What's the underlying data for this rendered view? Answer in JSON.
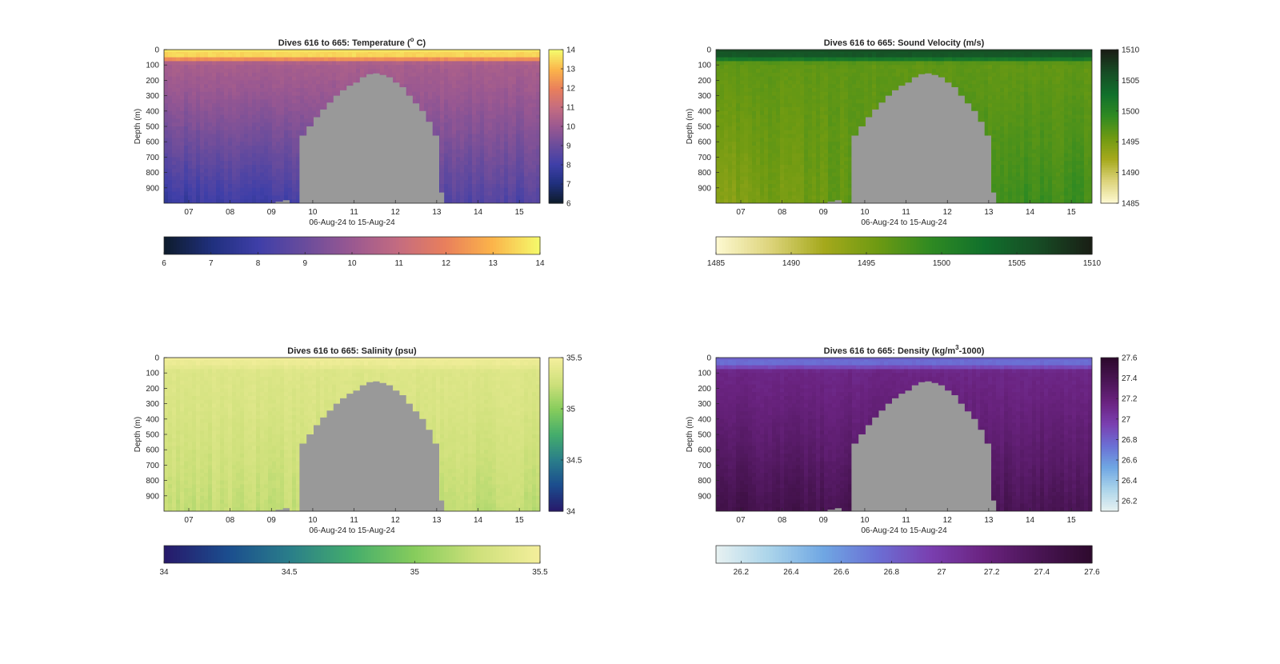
{
  "figure": {
    "colors": {
      "background": "#ffffff",
      "axis": "#262626",
      "bathymetry_mask": "#999999"
    }
  },
  "chart_data": [
    {
      "type": "heatmap",
      "id": "temperature",
      "title": "Dives 616 to 665: Temperature (°C)",
      "title_main": "Dives 616 to 665: Temperature (",
      "title_sup": "o",
      "title_end": " C)",
      "xlabel": "06-Aug-24 to 15-Aug-24",
      "ylabel": "Depth (m)",
      "x_ticks": [
        "07",
        "08",
        "09",
        "10",
        "11",
        "12",
        "13",
        "14",
        "15"
      ],
      "xlim_days": [
        6.4,
        15.5
      ],
      "y_ticks": [
        0,
        100,
        200,
        300,
        400,
        500,
        600,
        700,
        800,
        900
      ],
      "ylim": [
        0,
        1000
      ],
      "y_reversed": true,
      "colorbar_right": {
        "range": [
          6,
          14
        ],
        "ticks": [
          "6",
          "7",
          "8",
          "9",
          "10",
          "11",
          "12",
          "13",
          "14"
        ]
      },
      "colorbar_bottom": {
        "range": [
          6,
          14
        ],
        "ticks": [
          "6",
          "7",
          "8",
          "9",
          "10",
          "11",
          "12",
          "13",
          "14"
        ]
      },
      "colormap": [
        "#0e1c2e",
        "#20307e",
        "#3f3fa8",
        "#6a4c9c",
        "#9a5891",
        "#c46c80",
        "#e97f5c",
        "#fbb34a",
        "#f5f86a"
      ],
      "surface_value": 13.5,
      "mid_value": 10.3,
      "deep_value": 8.4,
      "left_deep_value": 7.7
    },
    {
      "type": "heatmap",
      "id": "sound_velocity",
      "title": "Dives 616 to 665: Sound Velocity (m/s)",
      "title_main": "Dives 616 to 665: Sound Velocity (m/s)",
      "title_sup": "",
      "title_end": "",
      "xlabel": "06-Aug-24 to 15-Aug-24",
      "ylabel": "Depth (m)",
      "x_ticks": [
        "07",
        "08",
        "09",
        "10",
        "11",
        "12",
        "13",
        "14",
        "15"
      ],
      "xlim_days": [
        6.4,
        15.5
      ],
      "y_ticks": [
        0,
        100,
        200,
        300,
        400,
        500,
        600,
        700,
        800,
        900
      ],
      "ylim": [
        0,
        1000
      ],
      "y_reversed": true,
      "colorbar_right": {
        "range": [
          1485,
          1510
        ],
        "ticks": [
          "1485",
          "1490",
          "1495",
          "1500",
          "1505",
          "1510"
        ]
      },
      "colorbar_bottom": {
        "range": [
          1485,
          1510
        ],
        "ticks": [
          "1485",
          "1490",
          "1495",
          "1500",
          "1505",
          "1510"
        ]
      },
      "colormap": [
        "#fdf8cf",
        "#dcd37a",
        "#a5a91c",
        "#6e9a12",
        "#2f8a22",
        "#11702c",
        "#174d25",
        "#191f15"
      ],
      "surface_value": 1505.5,
      "mid_value": 1496.5,
      "deep_value": 1498.5,
      "left_deep_value": 1494.0
    },
    {
      "type": "heatmap",
      "id": "salinity",
      "title": "Dives 616 to 665: Salinity (psu)",
      "title_main": "Dives 616 to 665: Salinity (psu)",
      "title_sup": "",
      "title_end": "",
      "xlabel": "06-Aug-24 to 15-Aug-24",
      "ylabel": "Depth (m)",
      "x_ticks": [
        "07",
        "08",
        "09",
        "10",
        "11",
        "12",
        "13",
        "14",
        "15"
      ],
      "xlim_days": [
        6.4,
        15.5
      ],
      "y_ticks": [
        0,
        100,
        200,
        300,
        400,
        500,
        600,
        700,
        800,
        900
      ],
      "ylim": [
        0,
        1000
      ],
      "y_reversed": true,
      "colorbar_right": {
        "range": [
          34,
          35.5
        ],
        "ticks": [
          "34",
          "34.5",
          "35",
          "35.5"
        ]
      },
      "colorbar_bottom": {
        "range": [
          34,
          35.5
        ],
        "ticks": [
          "34",
          "34.5",
          "35",
          "35.5"
        ]
      },
      "colormap": [
        "#271a6b",
        "#1b4d8e",
        "#2a7e8a",
        "#44ad6c",
        "#86cc5c",
        "#cde07a",
        "#f3ee9b"
      ],
      "surface_value": 35.45,
      "mid_value": 35.35,
      "deep_value": 35.2,
      "left_deep_value": 35.22
    },
    {
      "type": "heatmap",
      "id": "density",
      "title": "Dives 616 to 665: Density (kg/m³-1000)",
      "title_main": "Dives 616 to 665: Density (kg/m",
      "title_sup": "3",
      "title_end": "-1000)",
      "xlabel": "06-Aug-24 to 15-Aug-24",
      "ylabel": "Depth (m)",
      "x_ticks": [
        "07",
        "08",
        "09",
        "10",
        "11",
        "12",
        "13",
        "14",
        "15"
      ],
      "xlim_days": [
        6.4,
        15.5
      ],
      "y_ticks": [
        0,
        100,
        200,
        300,
        400,
        500,
        600,
        700,
        800,
        900
      ],
      "ylim": [
        0,
        1000
      ],
      "y_reversed": true,
      "colorbar_right": {
        "range": [
          26.1,
          27.6
        ],
        "ticks": [
          "26.2",
          "26.4",
          "26.6",
          "26.8",
          "27",
          "27.2",
          "27.4",
          "27.6"
        ]
      },
      "colorbar_bottom": {
        "range": [
          26.1,
          27.6
        ],
        "ticks": [
          "26.2",
          "26.4",
          "26.6",
          "26.8",
          "27",
          "27.2",
          "27.4",
          "27.6"
        ]
      },
      "colormap": [
        "#e6f1f1",
        "#a9d3ea",
        "#6fa6e3",
        "#6b6fd4",
        "#7a3fb0",
        "#6a2380",
        "#4a1555",
        "#2e0a2e"
      ],
      "surface_value": 26.75,
      "mid_value": 27.15,
      "deep_value": 27.4,
      "left_deep_value": 27.45
    }
  ]
}
